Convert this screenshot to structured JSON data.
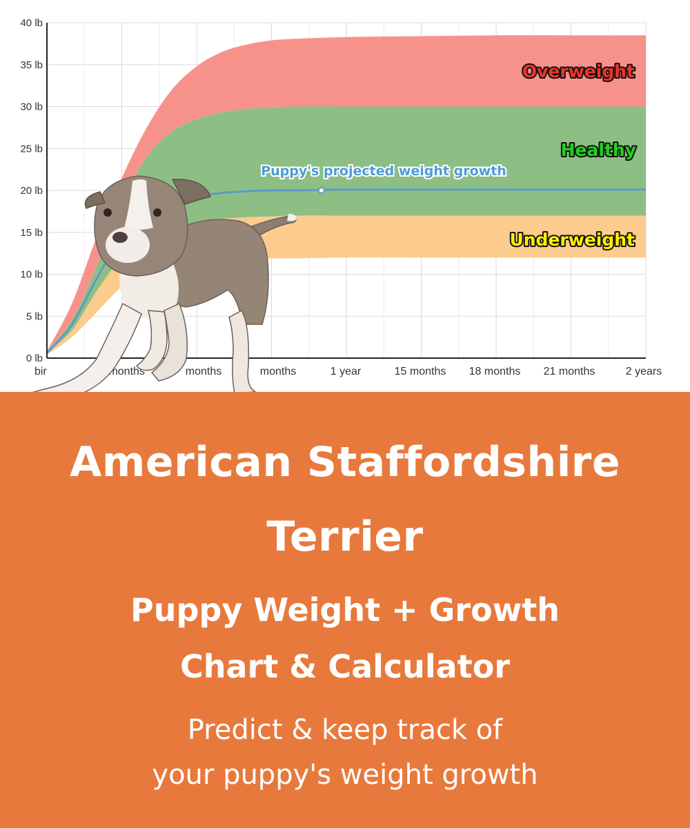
{
  "chart_data": {
    "type": "area",
    "x_categories": [
      "birth",
      "3 months",
      "6 months",
      "9 months",
      "1 year",
      "15 months",
      "18 months",
      "21 months",
      "2 years"
    ],
    "x_tick_labels_visible": [
      "bir",
      "3 months",
      "months",
      "months",
      "1 year",
      "15 months",
      "18 months",
      "21 months",
      "2 years"
    ],
    "y_ticks": [
      {
        "value": 0,
        "label": "0 lb"
      },
      {
        "value": 5,
        "label": "5 lb"
      },
      {
        "value": 10,
        "label": "10 lb"
      },
      {
        "value": 15,
        "label": "15 lb"
      },
      {
        "value": 20,
        "label": "20 lb"
      },
      {
        "value": 25,
        "label": "25 lb"
      },
      {
        "value": 30,
        "label": "30 lb"
      },
      {
        "value": 35,
        "label": "35 lb"
      },
      {
        "value": 40,
        "label": "40 lb"
      }
    ],
    "xlim_months": [
      0,
      24
    ],
    "ylim": [
      0,
      40
    ],
    "grid": true,
    "bands": [
      {
        "name": "Overweight",
        "color": "#f7928b",
        "label_color": "#e8352b",
        "months": [
          0,
          1,
          2,
          3,
          4,
          5,
          6,
          7,
          8,
          9,
          10,
          12,
          15,
          18,
          21,
          24
        ],
        "lower": [
          0.8,
          4.5,
          11.0,
          18.5,
          24.0,
          27.0,
          28.5,
          29.3,
          29.7,
          29.9,
          30.0,
          30.0,
          30.0,
          30.0,
          30.0,
          30.0
        ],
        "upper": [
          0.8,
          6.5,
          14.5,
          21.5,
          27.5,
          32.0,
          34.8,
          36.5,
          37.4,
          37.9,
          38.1,
          38.3,
          38.4,
          38.5,
          38.5,
          38.5
        ]
      },
      {
        "name": "Healthy",
        "color": "#8dbf85",
        "label_color": "#21d021",
        "months": [
          0,
          1,
          2,
          3,
          4,
          5,
          6,
          7,
          8,
          9,
          10,
          12,
          15,
          18,
          21,
          24
        ],
        "lower": [
          0.6,
          3.3,
          8.0,
          12.0,
          14.3,
          15.5,
          16.2,
          16.6,
          16.8,
          16.9,
          17.0,
          17.0,
          17.0,
          17.0,
          17.0,
          17.0
        ],
        "upper": [
          0.8,
          4.5,
          11.0,
          18.5,
          24.0,
          27.0,
          28.5,
          29.3,
          29.7,
          29.9,
          30.0,
          30.0,
          30.0,
          30.0,
          30.0,
          30.0
        ]
      },
      {
        "name": "Underweight",
        "color": "#fccb8e",
        "label_color": "#fff200",
        "months": [
          0,
          1,
          2,
          3,
          4,
          5,
          6,
          7,
          8,
          9,
          10,
          12,
          15,
          18,
          21,
          24
        ],
        "lower": [
          0.4,
          2.5,
          5.5,
          8.5,
          10.3,
          11.1,
          11.5,
          11.7,
          11.8,
          11.9,
          11.9,
          12.0,
          12.0,
          12.0,
          12.0,
          12.0
        ],
        "upper": [
          0.6,
          3.3,
          8.0,
          12.0,
          14.3,
          15.5,
          16.2,
          16.6,
          16.8,
          16.9,
          17.0,
          17.0,
          17.0,
          17.0,
          17.0,
          17.0
        ]
      }
    ],
    "series": [
      {
        "name": "Puppy's projected weight growth",
        "color": "#5b9bc9",
        "months": [
          0,
          1,
          2,
          3,
          4,
          5,
          6,
          7,
          8,
          9,
          10,
          12,
          15,
          18,
          21,
          24
        ],
        "values": [
          0.6,
          4.0,
          9.5,
          14.5,
          17.0,
          18.5,
          19.3,
          19.7,
          19.9,
          20.0,
          20.0,
          20.1,
          20.1,
          20.1,
          20.1,
          20.1
        ],
        "marker_month": 11
      }
    ]
  },
  "banner": {
    "title_line_1": "American Staffordshire",
    "title_line_2": "Terrier",
    "subtitle_line_1": "Puppy Weight + Growth",
    "subtitle_line_2": "Chart & Calculator",
    "tagline_line_1": "Predict & keep track of",
    "tagline_line_2": "your puppy's weight growth"
  },
  "colors": {
    "banner_bg": "#e8793c",
    "text": "#ffffff"
  },
  "photo": {
    "subject": "american-staffordshire-terrier-puppy"
  }
}
